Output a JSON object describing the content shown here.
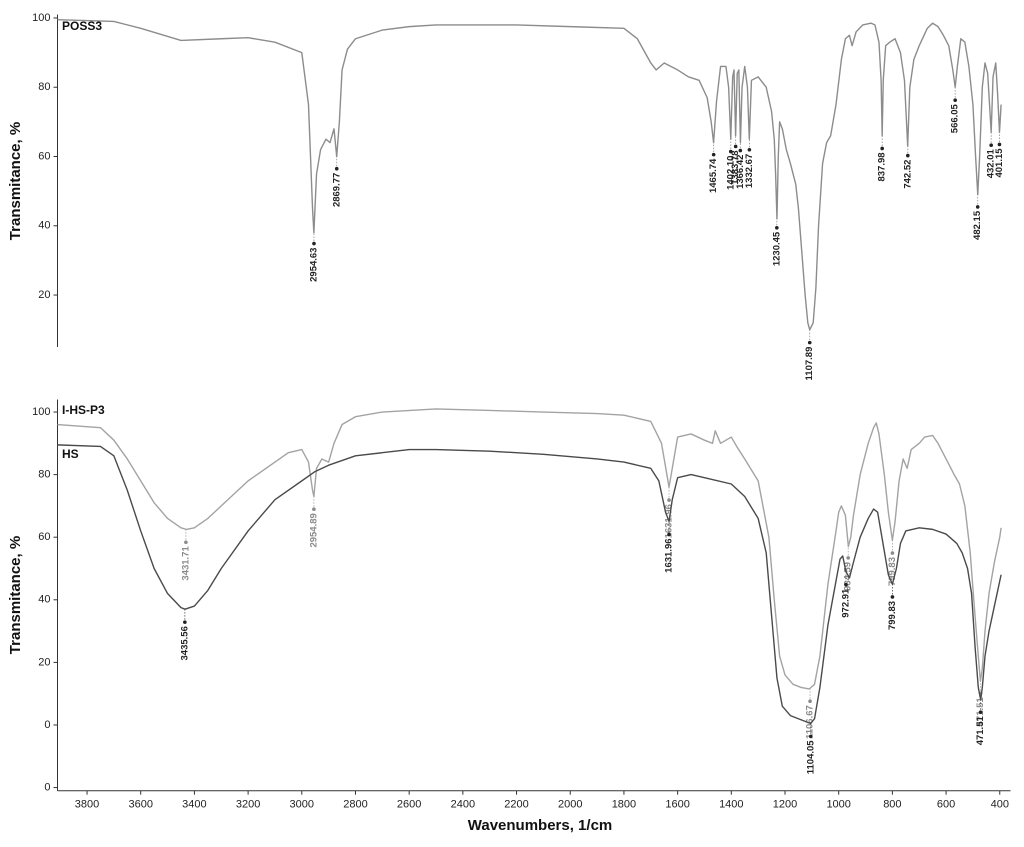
{
  "chart_data": [
    {
      "type": "line",
      "y_label": "Transmitance, %",
      "xlim": [
        3910,
        360
      ],
      "ylim": [
        5,
        101
      ],
      "yticks": [
        20,
        40,
        60,
        80,
        100
      ],
      "series": [
        {
          "name": "POSS3",
          "color": "#8c8c8c",
          "x": [
            3910,
            3700,
            3600,
            3450,
            3300,
            3200,
            3100,
            3000,
            2975,
            2960,
            2955,
            2945,
            2930,
            2910,
            2895,
            2880,
            2870,
            2860,
            2850,
            2830,
            2800,
            2700,
            2600,
            2500,
            2200,
            2000,
            1800,
            1750,
            1700,
            1680,
            1650,
            1600,
            1560,
            1520,
            1490,
            1475,
            1466,
            1455,
            1440,
            1420,
            1410,
            1402,
            1395,
            1390,
            1384,
            1378,
            1372,
            1366,
            1360,
            1350,
            1340,
            1333,
            1325,
            1300,
            1270,
            1250,
            1240,
            1235,
            1230,
            1225,
            1220,
            1210,
            1195,
            1180,
            1160,
            1150,
            1140,
            1125,
            1115,
            1108,
            1095,
            1085,
            1075,
            1060,
            1045,
            1030,
            1010,
            990,
            975,
            960,
            950,
            935,
            910,
            880,
            865,
            850,
            842,
            838,
            834,
            825,
            810,
            790,
            770,
            755,
            743,
            735,
            720,
            700,
            670,
            650,
            630,
            610,
            590,
            575,
            566,
            558,
            545,
            530,
            515,
            500,
            490,
            482,
            475,
            465,
            455,
            445,
            432,
            425,
            415,
            408,
            401,
            395
          ],
          "values": [
            99.5,
            99,
            97,
            93.5,
            94,
            94.3,
            93,
            90,
            75,
            45,
            38,
            55,
            62,
            65,
            64,
            68,
            60,
            70,
            85,
            91,
            94,
            96.5,
            97.5,
            98,
            98,
            97.5,
            97,
            94,
            87,
            85,
            87,
            85,
            83,
            82,
            77,
            70,
            64,
            76,
            86,
            86,
            80,
            65,
            83,
            85,
            66,
            84,
            85,
            64,
            80,
            86,
            80,
            65,
            82,
            83,
            80,
            73,
            65,
            55,
            42,
            60,
            70,
            68,
            62,
            58,
            52,
            45,
            35,
            20,
            12,
            10,
            12,
            22,
            40,
            58,
            64,
            66,
            75,
            88,
            94,
            95,
            92,
            96,
            98,
            98.5,
            98,
            93,
            82,
            66,
            82,
            92,
            93,
            94,
            90,
            82,
            63,
            80,
            88,
            92,
            97,
            98.5,
            97.5,
            95,
            92,
            85,
            80,
            86,
            94,
            93,
            86,
            75,
            60,
            49,
            60,
            80,
            87,
            84,
            67,
            83,
            87,
            78,
            67,
            75
          ],
          "peaks": [
            2954.63,
            2869.77,
            1465.74,
            1402.1,
            1383.78,
            1366.42,
            1332.67,
            1230.45,
            1107.89,
            837.98,
            742.52,
            566.05,
            482.15,
            432.01,
            401.15
          ],
          "peak_labels": [
            "2954.63",
            "2869.77",
            "1465.74",
            "1402.10",
            "1383.78",
            "1366.42",
            "1332.67",
            "1230.45",
            "1107.89",
            "837.98",
            "742.52",
            "566.05",
            "482.15",
            "432.01",
            "401.15"
          ]
        }
      ]
    },
    {
      "type": "line",
      "x_label": "Wavenumbers, 1/cm",
      "y_label": "Transmitance, %",
      "xlim": [
        3910,
        360
      ],
      "ylim": [
        -21,
        104
      ],
      "xticks": [
        3800,
        3600,
        3400,
        3200,
        3000,
        2800,
        2600,
        2400,
        2200,
        2000,
        1800,
        1600,
        1400,
        1200,
        1000,
        800,
        600,
        400
      ],
      "yticks": [
        {
          "value": -20,
          "label": "0"
        },
        0,
        20,
        40,
        60,
        80,
        100
      ],
      "series": [
        {
          "name": "I-HS-P3",
          "color": "#a3a3a3",
          "x": [
            3910,
            3750,
            3700,
            3650,
            3600,
            3550,
            3500,
            3450,
            3430,
            3400,
            3350,
            3300,
            3200,
            3100,
            3050,
            3000,
            2975,
            2960,
            2955,
            2945,
            2925,
            2900,
            2880,
            2850,
            2800,
            2700,
            2500,
            2300,
            2100,
            1900,
            1800,
            1700,
            1660,
            1640,
            1632,
            1620,
            1600,
            1550,
            1500,
            1470,
            1460,
            1440,
            1400,
            1380,
            1350,
            1300,
            1260,
            1240,
            1220,
            1200,
            1170,
            1140,
            1110,
            1090,
            1070,
            1040,
            1010,
            1000,
            990,
            975,
            964,
            955,
            945,
            920,
            890,
            870,
            860,
            850,
            830,
            815,
            800,
            790,
            775,
            760,
            745,
            730,
            700,
            680,
            650,
            630,
            600,
            570,
            550,
            530,
            510,
            495,
            480,
            472,
            465,
            455,
            440,
            420,
            400,
            395
          ],
          "values": [
            96,
            95,
            91,
            85,
            78,
            71,
            66,
            63,
            62.5,
            63,
            66,
            70,
            78,
            84,
            87,
            88,
            84,
            75,
            73,
            82,
            85,
            84,
            90,
            96,
            98.5,
            100,
            101,
            100.5,
            100,
            99.5,
            99,
            97,
            90,
            80,
            76,
            82,
            92,
            93,
            91,
            90,
            94,
            90,
            92,
            89,
            85,
            78,
            60,
            40,
            22,
            16,
            13,
            12,
            11.5,
            13,
            22,
            45,
            62,
            68,
            70,
            67,
            57,
            60,
            67,
            80,
            90,
            95,
            96.5,
            93,
            80,
            68,
            59,
            65,
            78,
            85,
            82,
            88,
            90,
            92,
            92.5,
            90,
            85,
            80,
            77,
            70,
            55,
            38,
            22,
            14,
            18,
            30,
            42,
            52,
            60,
            63
          ],
          "peaks": [
            3431.71,
            2954.89,
            1631.96,
            1106.67,
            964.59,
            799.83,
            471.51
          ],
          "peak_labels": [
            "3431.71",
            "2954.89",
            "1631.96",
            "1106.67",
            "964.59",
            "799.83",
            "471.51"
          ]
        },
        {
          "name": "HS",
          "color": "#4a4a4a",
          "x": [
            3910,
            3750,
            3700,
            3650,
            3600,
            3550,
            3500,
            3450,
            3435,
            3400,
            3350,
            3300,
            3200,
            3100,
            3000,
            2950,
            2900,
            2800,
            2600,
            2500,
            2300,
            2100,
            1900,
            1800,
            1700,
            1670,
            1645,
            1632,
            1620,
            1600,
            1550,
            1500,
            1400,
            1350,
            1300,
            1270,
            1250,
            1230,
            1210,
            1180,
            1150,
            1120,
            1104,
            1090,
            1070,
            1040,
            1010,
            995,
            985,
            973,
            960,
            945,
            920,
            890,
            870,
            855,
            835,
            815,
            800,
            785,
            770,
            750,
            700,
            650,
            600,
            560,
            540,
            520,
            505,
            492,
            480,
            471,
            465,
            455,
            440,
            420,
            400,
            395
          ],
          "values": [
            89.5,
            89,
            86,
            75,
            62,
            50,
            42,
            37.5,
            37,
            38,
            43,
            50,
            62,
            72,
            78,
            81,
            83,
            86,
            88,
            88,
            87.5,
            86.5,
            85,
            84,
            82,
            78,
            68,
            65,
            72,
            79,
            80,
            79,
            77,
            73,
            66,
            55,
            35,
            15,
            6,
            3,
            2,
            1,
            0.5,
            2,
            12,
            32,
            46,
            53,
            54,
            49,
            47,
            52,
            60,
            66,
            69,
            68,
            58,
            48,
            45,
            50,
            58,
            62,
            63,
            62.5,
            61,
            58,
            55,
            50,
            42,
            25,
            12,
            8,
            12,
            22,
            30,
            38,
            46,
            48
          ],
          "peaks": [
            3435.56,
            1631.96,
            1104.05,
            972.91,
            799.83,
            471.51
          ],
          "peak_labels": [
            "3435.56",
            "1631.96",
            "1104.05",
            "972.91",
            "799.83",
            "471.51"
          ]
        }
      ]
    }
  ]
}
